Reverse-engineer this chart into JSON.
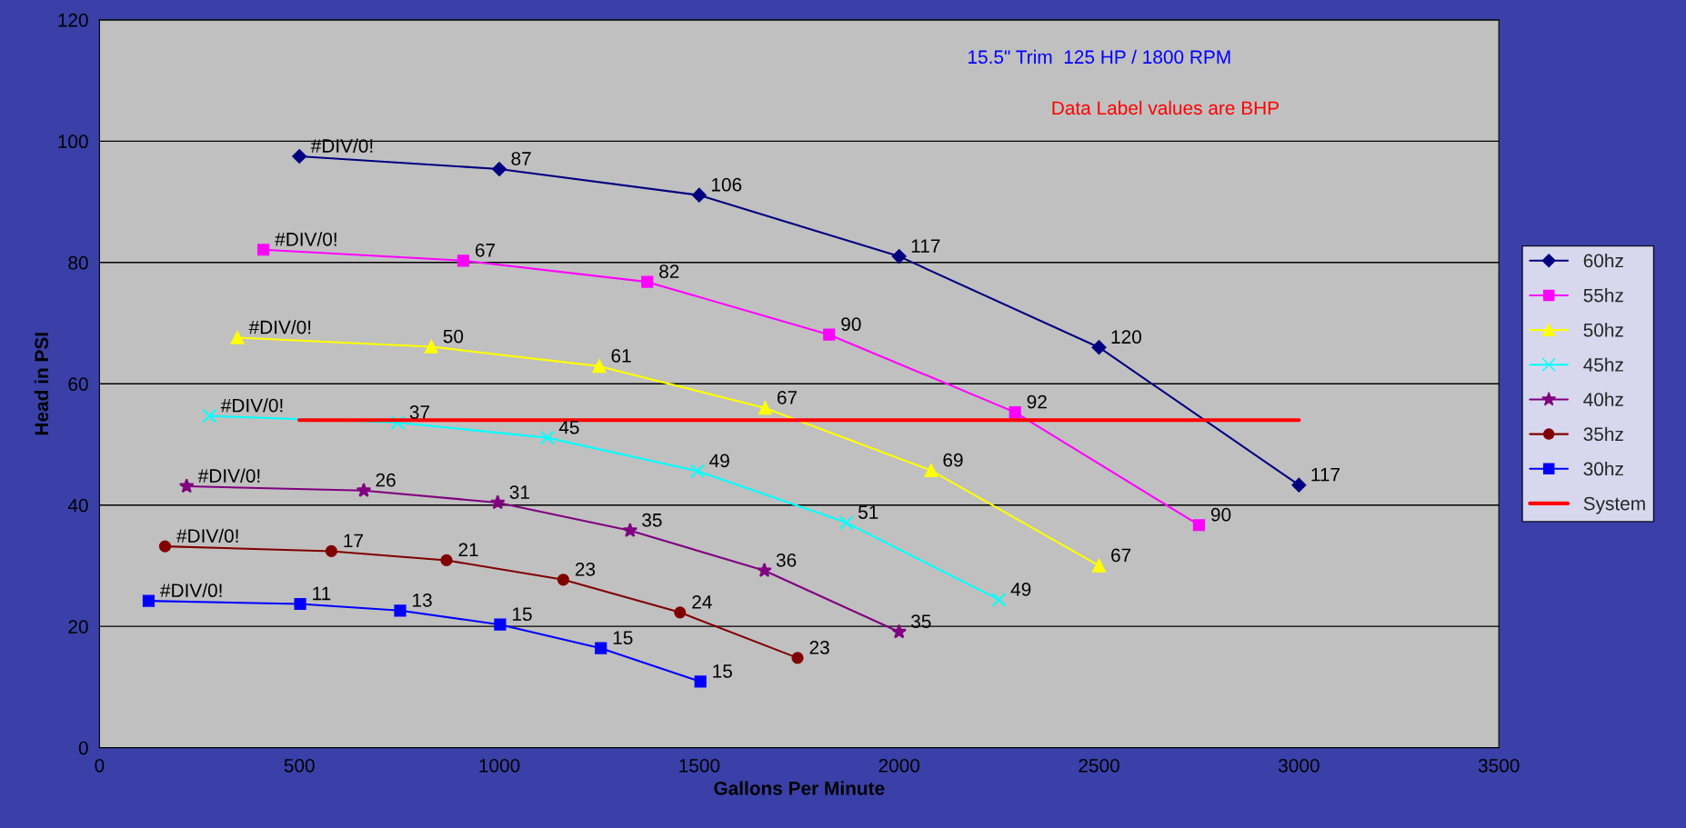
{
  "chart_data": {
    "type": "line",
    "xlabel": "Gallons Per Minute",
    "ylabel": "Head in PSI",
    "annotations": [
      "15.5\" Trim  125 HP / 1800 RPM",
      "Data Label values are BHP",
      {
        "text": "#DIV/0!",
        "x": 500,
        "y": 97.5
      },
      {
        "text": "87",
        "x": 1000,
        "y": 95.4
      },
      {
        "text": "106",
        "x": 1500,
        "y": 91.1
      },
      {
        "text": "117",
        "x": 2000,
        "y": 81.0
      },
      {
        "text": "120",
        "x": 2500,
        "y": 66.0
      },
      {
        "text": "117",
        "x": 3000,
        "y": 43.3
      },
      {
        "text": "#DIV/0!",
        "x": 410,
        "y": 82.1
      },
      {
        "text": "67",
        "x": 910,
        "y": 80.3
      },
      {
        "text": "82",
        "x": 1370,
        "y": 76.8
      },
      {
        "text": "90",
        "x": 1825,
        "y": 68.1
      },
      {
        "text": "92",
        "x": 2290,
        "y": 55.3
      },
      {
        "text": "90",
        "x": 2750,
        "y": 36.7
      },
      {
        "text": "#DIV/0!",
        "x": 345,
        "y": 67.6
      },
      {
        "text": "50",
        "x": 830,
        "y": 66.1
      },
      {
        "text": "61",
        "x": 1250,
        "y": 62.9
      },
      {
        "text": "67",
        "x": 1665,
        "y": 56.0
      },
      {
        "text": "69",
        "x": 2080,
        "y": 45.7
      },
      {
        "text": "67",
        "x": 2500,
        "y": 30.0
      },
      {
        "text": "#DIV/0!",
        "x": 275,
        "y": 54.7
      },
      {
        "text": "37",
        "x": 746,
        "y": 53.6
      },
      {
        "text": "45",
        "x": 1120,
        "y": 51.1
      },
      {
        "text": "49",
        "x": 1496,
        "y": 45.6
      },
      {
        "text": "51",
        "x": 1868,
        "y": 37.1
      },
      {
        "text": "49",
        "x": 2250,
        "y": 24.4
      },
      {
        "text": "#DIV/0!",
        "x": 218,
        "y": 43.1
      },
      {
        "text": "26",
        "x": 661,
        "y": 42.4
      },
      {
        "text": "31",
        "x": 996,
        "y": 40.4
      },
      {
        "text": "35",
        "x": 1327,
        "y": 35.8
      },
      {
        "text": "36",
        "x": 1663,
        "y": 29.2
      },
      {
        "text": "35",
        "x": 2000,
        "y": 19.1
      },
      {
        "text": "#DIV/0!",
        "x": 164,
        "y": 33.2
      },
      {
        "text": "17",
        "x": 580,
        "y": 32.4
      },
      {
        "text": "21",
        "x": 868,
        "y": 30.9
      },
      {
        "text": "23",
        "x": 1160,
        "y": 27.7
      },
      {
        "text": "24",
        "x": 1452,
        "y": 22.3
      },
      {
        "text": "23",
        "x": 1746,
        "y": 14.8
      },
      {
        "text": "#DIV/0!",
        "x": 123,
        "y": 24.2
      },
      {
        "text": "11",
        "x": 502,
        "y": 23.7
      },
      {
        "text": "13",
        "x": 752,
        "y": 22.6
      },
      {
        "text": "15",
        "x": 1002,
        "y": 20.3
      },
      {
        "text": "15",
        "x": 1254,
        "y": 16.4
      },
      {
        "text": "15",
        "x": 1503,
        "y": 10.9
      }
    ],
    "xlim": [
      0,
      3500
    ],
    "xticks": [
      0,
      500,
      1000,
      1500,
      2000,
      2500,
      3000,
      3500
    ],
    "ylim": [
      0,
      120
    ],
    "yticks": [
      0,
      20,
      40,
      60,
      80,
      100,
      120
    ],
    "grid": "y",
    "legend": "right",
    "series": [
      {
        "name": "60hz",
        "color": "#000080",
        "marker": "diamond",
        "x": [
          500,
          1000,
          1500,
          2000,
          2500,
          3000
        ],
        "values": [
          97.5,
          95.4,
          91.1,
          81.0,
          66.0,
          43.3
        ]
      },
      {
        "name": "55hz",
        "color": "#ff00ff",
        "marker": "square",
        "x": [
          410,
          910,
          1370,
          1825,
          2290,
          2750
        ],
        "values": [
          82.1,
          80.3,
          76.8,
          68.1,
          55.3,
          36.7
        ]
      },
      {
        "name": "50hz",
        "color": "#ffff00",
        "marker": "triangle",
        "x": [
          345,
          830,
          1250,
          1665,
          2080,
          2500
        ],
        "values": [
          67.6,
          66.1,
          62.9,
          56.0,
          45.7,
          30.0
        ]
      },
      {
        "name": "45hz",
        "color": "#00ffff",
        "marker": "cross",
        "x": [
          275,
          746,
          1120,
          1496,
          1868,
          2250
        ],
        "values": [
          54.7,
          53.6,
          51.1,
          45.6,
          37.1,
          24.4
        ]
      },
      {
        "name": "40hz",
        "color": "#800080",
        "marker": "star",
        "x": [
          218,
          661,
          996,
          1327,
          1663,
          2000
        ],
        "values": [
          43.1,
          42.4,
          40.4,
          35.8,
          29.2,
          19.1
        ]
      },
      {
        "name": "35hz",
        "color": "#800000",
        "marker": "circle",
        "x": [
          164,
          580,
          868,
          1160,
          1452,
          1746
        ],
        "values": [
          33.2,
          32.4,
          30.9,
          27.7,
          22.3,
          14.8
        ]
      },
      {
        "name": "30hz",
        "color": "#0000ff",
        "marker": "square",
        "x": [
          123,
          502,
          752,
          1002,
          1254,
          1503
        ],
        "values": [
          24.2,
          23.7,
          22.6,
          20.3,
          16.4,
          10.9
        ]
      },
      {
        "name": "System",
        "color": "#ff0000",
        "x": [
          500,
          1000,
          1500,
          2000,
          2500,
          3000
        ],
        "values": [
          54,
          54,
          54,
          54,
          54,
          54
        ]
      }
    ]
  }
}
